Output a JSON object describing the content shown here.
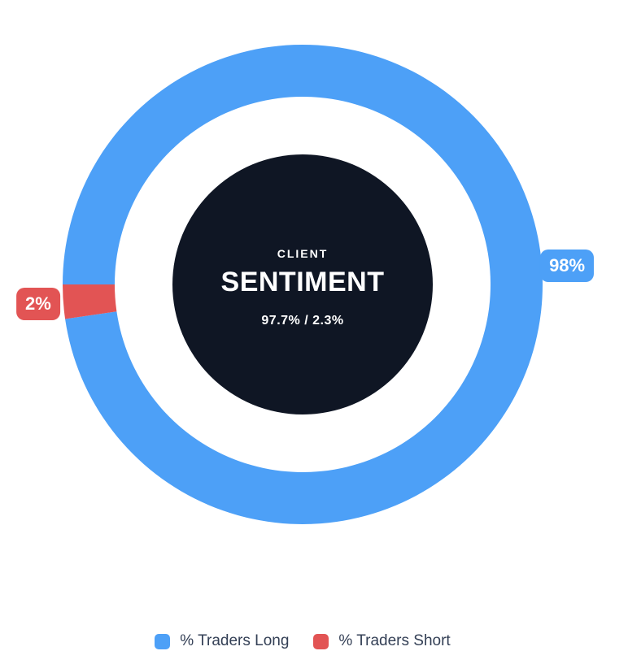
{
  "chart_data": {
    "type": "pie",
    "subtype": "donut",
    "title": "CLIENT SENTIMENT",
    "categories": [
      "% Traders Long",
      "% Traders Short"
    ],
    "values": [
      97.7,
      2.3
    ],
    "slice_badges": [
      "98%",
      "2%"
    ],
    "colors": [
      "#4DA0F7",
      "#E25454"
    ],
    "center_text": {
      "eyebrow": "CLIENT",
      "title": "SENTIMENT",
      "values": "97.7% / 2.3%"
    },
    "hub_color": "#0F1624",
    "start_angle": "left (9 o'clock), sweeping through top",
    "legend_position": "bottom",
    "badge_text_color": "#FFFFFF"
  },
  "legend": {
    "items": [
      {
        "label": "% Traders Long",
        "color": "#4DA0F7"
      },
      {
        "label": "% Traders Short",
        "color": "#E25454"
      }
    ]
  }
}
